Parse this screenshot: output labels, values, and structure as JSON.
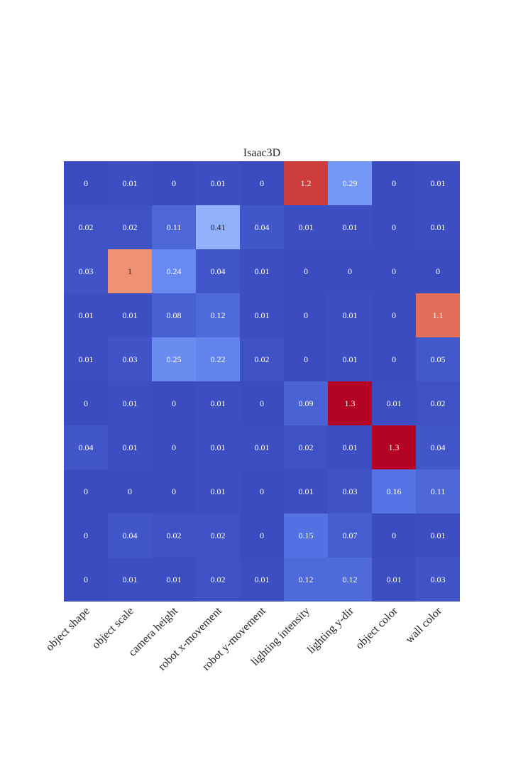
{
  "chart_data": {
    "type": "heatmap",
    "title": "Isaac3D",
    "xlabel": "",
    "ylabel": "",
    "colormap": "coolwarm",
    "vmin": 0,
    "vmax": 1.3,
    "colorbar": false,
    "x_categories": [
      "object shape",
      "object scale",
      "camera height",
      "robot x-movement",
      "robot y-movement",
      "lighting intensity",
      "lighting y-dir",
      "object color",
      "wall color"
    ],
    "y_tick_labels_shown": false,
    "values": [
      [
        0,
        0.01,
        0,
        0.01,
        0,
        1.2,
        0.29,
        0,
        0.01
      ],
      [
        0.02,
        0.02,
        0.11,
        0.41,
        0.04,
        0.01,
        0.01,
        0,
        0.01
      ],
      [
        0.03,
        1,
        0.24,
        0.04,
        0.01,
        0,
        0,
        0,
        0
      ],
      [
        0.01,
        0.01,
        0.08,
        0.12,
        0.01,
        0,
        0.01,
        0,
        1.1
      ],
      [
        0.01,
        0.03,
        0.25,
        0.22,
        0.02,
        0,
        0.01,
        0,
        0.05
      ],
      [
        0,
        0.01,
        0,
        0.01,
        0,
        0.09,
        1.3,
        0.01,
        0.02
      ],
      [
        0.04,
        0.01,
        0,
        0.01,
        0.01,
        0.02,
        0.01,
        1.3,
        0.04
      ],
      [
        0,
        0,
        0,
        0.01,
        0,
        0.01,
        0.03,
        0.16,
        0.11
      ],
      [
        0,
        0.04,
        0.02,
        0.02,
        0,
        0.15,
        0.07,
        0,
        0.01
      ],
      [
        0,
        0.01,
        0.01,
        0.02,
        0.01,
        0.12,
        0.12,
        0.01,
        0.03
      ]
    ]
  }
}
